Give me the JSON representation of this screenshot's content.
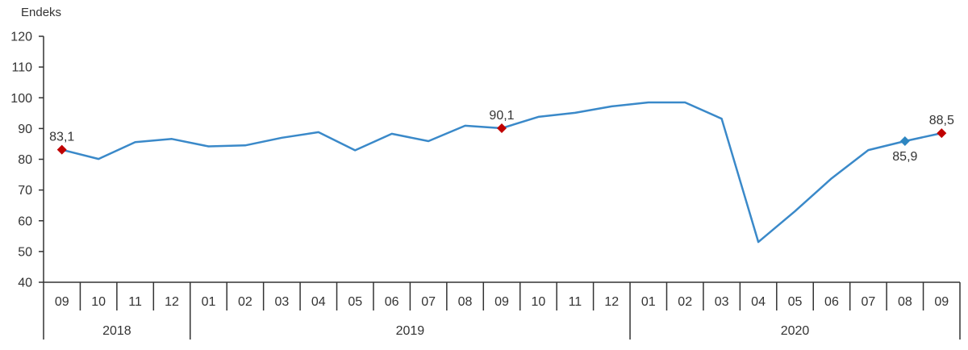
{
  "chart_data": {
    "type": "line",
    "title": "",
    "xlabel": "",
    "ylabel": "Endeks",
    "ylim": [
      40,
      120
    ],
    "yticks": [
      40,
      50,
      60,
      70,
      80,
      90,
      100,
      110,
      120
    ],
    "grid": false,
    "legend": null,
    "categories": [
      "09",
      "10",
      "11",
      "12",
      "01",
      "02",
      "03",
      "04",
      "05",
      "06",
      "07",
      "08",
      "09",
      "10",
      "11",
      "12",
      "01",
      "02",
      "03",
      "04",
      "05",
      "06",
      "07",
      "08",
      "09"
    ],
    "year_groups": [
      {
        "label": "2018",
        "start": 0,
        "end": 3
      },
      {
        "label": "2019",
        "start": 4,
        "end": 15
      },
      {
        "label": "2020",
        "start": 16,
        "end": 24
      }
    ],
    "series": [
      {
        "name": "Endeks",
        "color": "#3A89C9",
        "values": [
          83.1,
          80.1,
          85.6,
          86.6,
          84.2,
          84.5,
          87.0,
          88.8,
          82.9,
          88.3,
          85.9,
          90.9,
          90.1,
          93.8,
          95.1,
          97.2,
          98.5,
          98.5,
          93.2,
          53.1,
          63.1,
          73.8,
          83.0,
          85.9,
          88.5
        ]
      }
    ],
    "annotations": [
      {
        "index": 0,
        "label": "83,1",
        "marker_color": "#C00000",
        "position": "above"
      },
      {
        "index": 12,
        "label": "90,1",
        "marker_color": "#C00000",
        "position": "above"
      },
      {
        "index": 23,
        "label": "85,9",
        "marker_color": "#2E86C1",
        "position": "below"
      },
      {
        "index": 24,
        "label": "88,5",
        "marker_color": "#C00000",
        "position": "above"
      }
    ]
  }
}
